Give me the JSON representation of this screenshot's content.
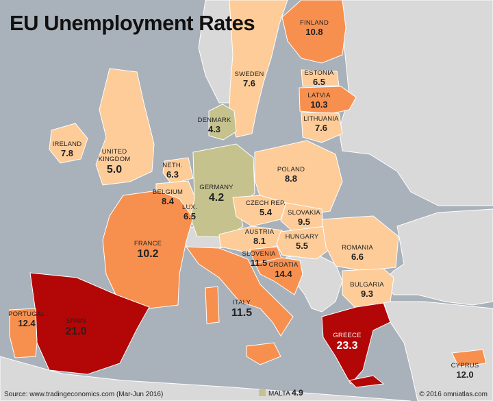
{
  "title": "EU Unemployment Rates",
  "source": "Source: www.tradingeconomics.com (Mar-Jun 2016)",
  "copyright": "© 2016 omniatlas.com",
  "malta": {
    "name": "MALTA",
    "value": "4.9"
  },
  "colors": {
    "sea": "#a9b1ba",
    "non_eu_land": "#d9d9d9",
    "lowest": "#c6c28e",
    "low": "#fdcc99",
    "medium": "#f7904f",
    "high": "#b30606"
  },
  "countries": {
    "finland": {
      "name": "FINLAND",
      "value": "10.8"
    },
    "sweden": {
      "name": "SWEDEN",
      "value": "7.6"
    },
    "estonia": {
      "name": "ESTONIA",
      "value": "6.5"
    },
    "latvia": {
      "name": "LATVIA",
      "value": "10.3"
    },
    "lithuania": {
      "name": "LITHUANIA",
      "value": "7.6"
    },
    "denmark": {
      "name": "DENMARK",
      "value": "4.3"
    },
    "ireland": {
      "name": "IRELAND",
      "value": "7.8"
    },
    "uk": {
      "name1": "UNITED",
      "name2": "KINGDOM",
      "value": "5.0"
    },
    "netherlands": {
      "name": "NETH.",
      "value": "6.3"
    },
    "belgium": {
      "name": "BELGIUM",
      "value": "8.4"
    },
    "luxembourg": {
      "name": "LUX.",
      "value": "6.5"
    },
    "germany": {
      "name": "GERMANY",
      "value": "4.2"
    },
    "poland": {
      "name": "POLAND",
      "value": "8.8"
    },
    "czech": {
      "name": "CZECH REP.",
      "value": "5.4"
    },
    "slovakia": {
      "name": "SLOVAKIA",
      "value": "9.5"
    },
    "austria": {
      "name": "AUSTRIA",
      "value": "8.1"
    },
    "hungary": {
      "name": "HUNGARY",
      "value": "5.5"
    },
    "slovenia": {
      "name": "SLOVENIA",
      "value": "11.5"
    },
    "croatia": {
      "name": "CROATIA",
      "value": "14.4"
    },
    "romania": {
      "name": "ROMANIA",
      "value": "6.6"
    },
    "bulgaria": {
      "name": "BULGARIA",
      "value": "9.3"
    },
    "france": {
      "name": "FRANCE",
      "value": "10.2"
    },
    "italy": {
      "name": "ITALY",
      "value": "11.5"
    },
    "spain": {
      "name": "SPAIN",
      "value": "21.0"
    },
    "portugal": {
      "name": "PORTUGAL",
      "value": "12.4"
    },
    "greece": {
      "name": "GREECE",
      "value": "23.3"
    },
    "cyprus": {
      "name": "CYPRUS",
      "value": "12.0"
    }
  }
}
